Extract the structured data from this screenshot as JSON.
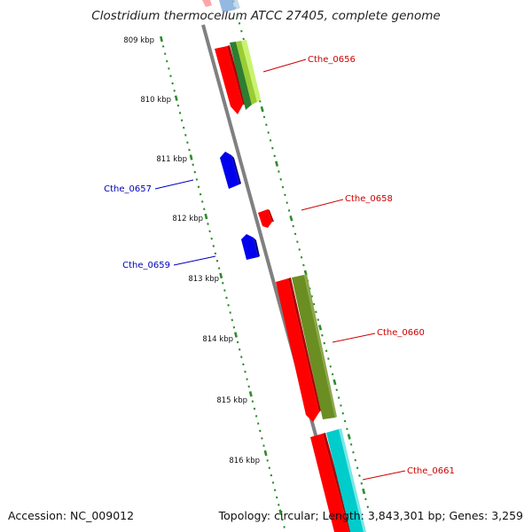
{
  "title": "Clostridium thermocellum ATCC 27405, complete genome",
  "accession": "Accession: NC_009012",
  "topology": "Topology: circular; Length: 3,843,301 bp; Genes: 3,259",
  "colors": {
    "backbone": "#808080",
    "tick": "#2e8b2e",
    "forward_label": "#cc0000",
    "reverse_label": "#0000bb",
    "gene_red": "#ff0000",
    "gene_blue": "#0000ee",
    "gene_olive": "#6b8e23",
    "gene_cyan": "#00cccc",
    "gene_lime": "#9acd32",
    "gene_green": "#228b22"
  },
  "ruler": {
    "labels": [
      "809 kbp",
      "810 kbp",
      "811 kbp",
      "812 kbp",
      "813 kbp",
      "814 kbp",
      "815 kbp",
      "816 kbp"
    ]
  },
  "genes": [
    {
      "name": "Cthe_0656",
      "strand": "forward"
    },
    {
      "name": "Cthe_0657",
      "strand": "reverse"
    },
    {
      "name": "Cthe_0658",
      "strand": "forward"
    },
    {
      "name": "Cthe_0659",
      "strand": "reverse"
    },
    {
      "name": "Cthe_0660",
      "strand": "forward"
    },
    {
      "name": "Cthe_0661",
      "strand": "forward"
    }
  ]
}
